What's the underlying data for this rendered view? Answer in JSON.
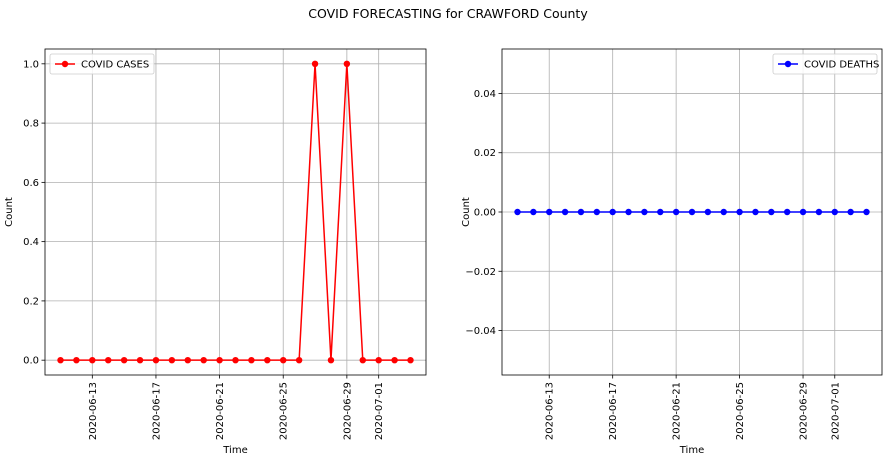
{
  "figure_title": "COVID FORECASTING for CRAWFORD County",
  "chart_data": [
    {
      "type": "line",
      "xlabel": "Time",
      "ylabel": "Count",
      "x": [
        "2020-06-11",
        "2020-06-12",
        "2020-06-13",
        "2020-06-14",
        "2020-06-15",
        "2020-06-16",
        "2020-06-17",
        "2020-06-18",
        "2020-06-19",
        "2020-06-20",
        "2020-06-21",
        "2020-06-22",
        "2020-06-23",
        "2020-06-24",
        "2020-06-25",
        "2020-06-26",
        "2020-06-27",
        "2020-06-28",
        "2020-06-29",
        "2020-06-30",
        "2020-07-01",
        "2020-07-02",
        "2020-07-03"
      ],
      "series": [
        {
          "name": "COVID CASES",
          "color": "#ff0000",
          "values": [
            0,
            0,
            0,
            0,
            0,
            0,
            0,
            0,
            0,
            0,
            0,
            0,
            0,
            0,
            0,
            0,
            1,
            0,
            1,
            0,
            0,
            0,
            0
          ]
        }
      ],
      "xticks": [
        "2020-06-13",
        "2020-06-17",
        "2020-06-21",
        "2020-06-25",
        "2020-06-29",
        "2020-07-01"
      ],
      "ylim": [
        -0.05,
        1.05
      ],
      "yticks": [
        "0.0",
        "0.2",
        "0.4",
        "0.6",
        "0.8",
        "1.0"
      ],
      "grid": true,
      "legend": "upper-left"
    },
    {
      "type": "line",
      "xlabel": "Time",
      "ylabel": "Count",
      "x": [
        "2020-06-11",
        "2020-06-12",
        "2020-06-13",
        "2020-06-14",
        "2020-06-15",
        "2020-06-16",
        "2020-06-17",
        "2020-06-18",
        "2020-06-19",
        "2020-06-20",
        "2020-06-21",
        "2020-06-22",
        "2020-06-23",
        "2020-06-24",
        "2020-06-25",
        "2020-06-26",
        "2020-06-27",
        "2020-06-28",
        "2020-06-29",
        "2020-06-30",
        "2020-07-01",
        "2020-07-02",
        "2020-07-03"
      ],
      "series": [
        {
          "name": "COVID DEATHS",
          "color": "#0000ff",
          "values": [
            0,
            0,
            0,
            0,
            0,
            0,
            0,
            0,
            0,
            0,
            0,
            0,
            0,
            0,
            0,
            0,
            0,
            0,
            0,
            0,
            0,
            0,
            0
          ]
        }
      ],
      "xticks": [
        "2020-06-13",
        "2020-06-17",
        "2020-06-21",
        "2020-06-25",
        "2020-06-29",
        "2020-07-01"
      ],
      "ylim": [
        -0.055,
        0.055
      ],
      "yticks": [
        "−0.04",
        "−0.02",
        "0.00",
        "0.02",
        "0.04"
      ],
      "grid": true,
      "legend": "upper-right"
    }
  ]
}
